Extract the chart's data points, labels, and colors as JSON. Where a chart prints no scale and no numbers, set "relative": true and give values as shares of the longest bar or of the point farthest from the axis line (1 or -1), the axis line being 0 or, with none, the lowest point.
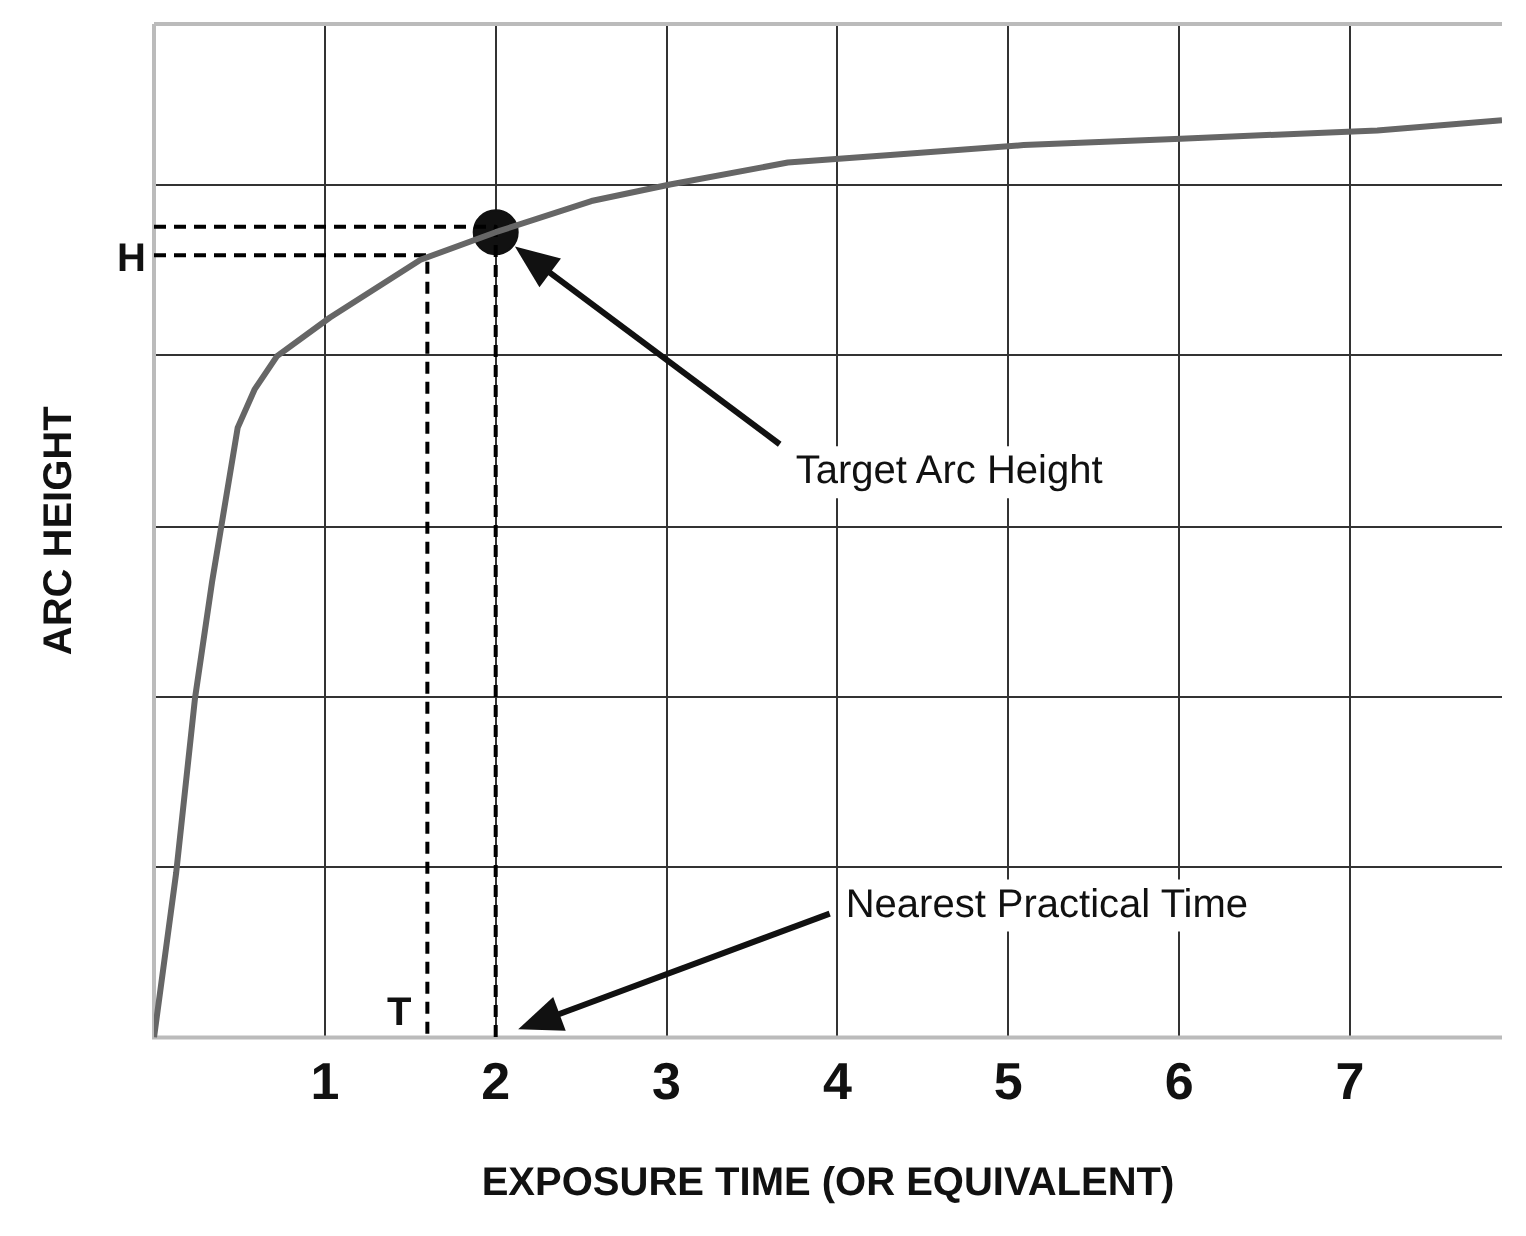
{
  "chart_data": {
    "type": "line",
    "relative": true,
    "xlabel": "EXPOSURE TIME (OR EQUIVALENT)",
    "ylabel": "ARC HEIGHT",
    "xlim": [
      0,
      7.89
    ],
    "xticks": [
      1,
      2,
      3,
      4,
      5,
      6,
      7
    ],
    "grid": true,
    "legend": false,
    "marker": "none",
    "series": [
      {
        "color": "#666666",
        "x": [
          0,
          0.13,
          0.24,
          0.34,
          0.49,
          0.59,
          0.72,
          1.03,
          1.56,
          2,
          2.56,
          3.02,
          3.71,
          4.29,
          5.09,
          6.01,
          7.16,
          7.89
        ],
        "values": [
          0,
          0.18,
          0.37,
          0.497,
          0.665,
          0.707,
          0.743,
          0.785,
          0.848,
          0.878,
          0.912,
          0.93,
          0.954,
          0.962,
          0.973,
          0.98,
          0.989,
          1
        ]
      },
      {
        "color": "#000000",
        "line_style": "dashed",
        "x": [
          0,
          2,
          2
        ],
        "values": [
          0.884,
          0.884,
          0
        ]
      },
      {
        "color": "#000000",
        "line_style": "dashed",
        "x": [
          0,
          1.6,
          1.6
        ],
        "values": [
          0.853,
          0.853,
          0
        ]
      },
      {
        "type": "scatter",
        "marker": "circle",
        "color": "#111111",
        "x": [
          2
        ],
        "values": [
          0.878
        ]
      }
    ],
    "annotations": [
      "H",
      {
        "text": "T",
        "x": 1.6,
        "y": 0
      },
      "Target Arc Height",
      "Nearest Practical Time"
    ]
  }
}
